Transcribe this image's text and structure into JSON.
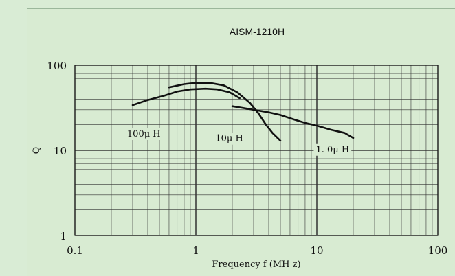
{
  "chart_data": {
    "type": "line",
    "title": "AISM-1210H",
    "xlabel": "Frequency  f  (MH z)",
    "ylabel": "Q",
    "x_scale": "log",
    "y_scale": "log",
    "xlim": [
      0.1,
      100
    ],
    "ylim": [
      1,
      100
    ],
    "x_ticks": [
      {
        "value": 0.1,
        "label": "0.1"
      },
      {
        "value": 1,
        "label": "1"
      },
      {
        "value": 10,
        "label": "10"
      },
      {
        "value": 100,
        "label": "100"
      }
    ],
    "y_ticks": [
      {
        "value": 1,
        "label": "1"
      },
      {
        "value": 10,
        "label": "10"
      },
      {
        "value": 100,
        "label": "100"
      }
    ],
    "grid": true,
    "series": [
      {
        "name": "100 μ H",
        "label": "100μ H",
        "x": [
          0.3,
          0.4,
          0.55,
          0.7,
          0.9,
          1.2,
          1.5,
          1.9,
          2.3
        ],
        "y": [
          34,
          39,
          44,
          49,
          52,
          53,
          52,
          48,
          41
        ]
      },
      {
        "name": "10 μ H",
        "label": "10μ H",
        "x": [
          0.6,
          0.8,
          1.0,
          1.3,
          1.7,
          2.2,
          2.8,
          3.3,
          3.8,
          4.3,
          5.0
        ],
        "y": [
          55,
          60,
          62,
          62,
          58,
          48,
          36,
          27,
          20,
          16,
          13
        ]
      },
      {
        "name": "1.0 μ H",
        "label": "1. 0μ H",
        "x": [
          2.0,
          3.0,
          4.0,
          5.0,
          6.5,
          8.0,
          10,
          13,
          17,
          20
        ],
        "y": [
          33,
          30,
          28,
          26,
          23,
          21,
          19.5,
          17.5,
          16,
          14
        ]
      }
    ]
  }
}
